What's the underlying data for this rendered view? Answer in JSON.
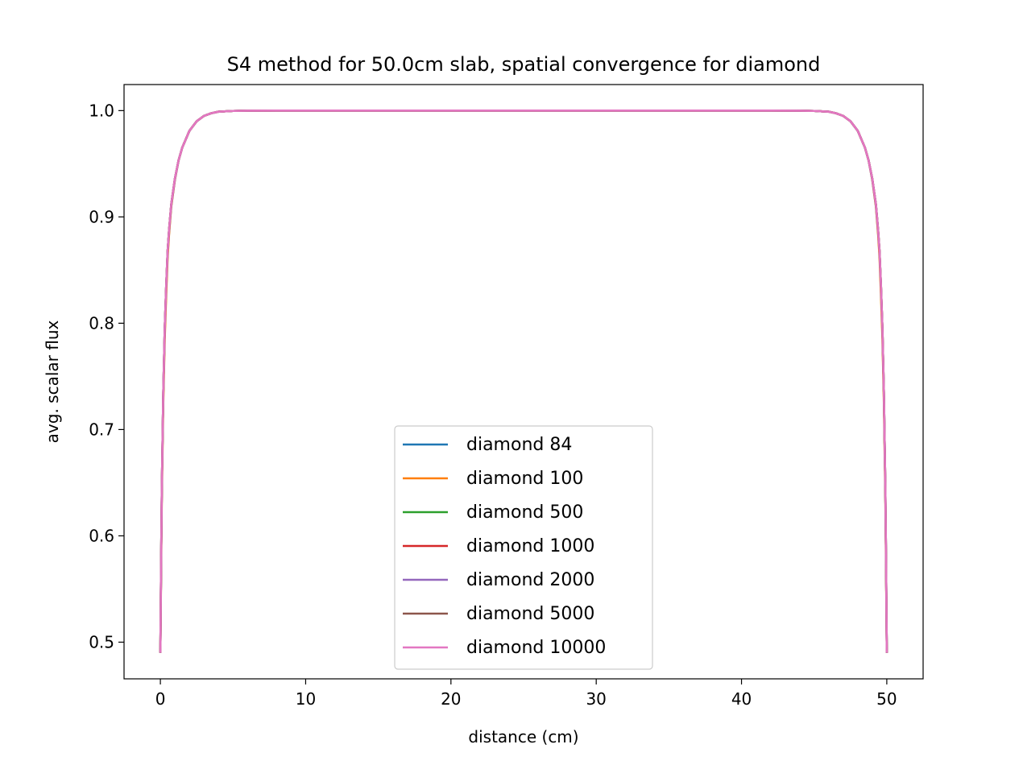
{
  "chart_data": {
    "type": "line",
    "title": "S4 method for 50.0cm slab, spatial convergence for diamond",
    "xlabel": "distance (cm)",
    "ylabel": "avg. scalar flux",
    "xlim": [
      -2.5,
      52.5
    ],
    "ylim": [
      0.4655,
      1.0245
    ],
    "xticks": [
      0,
      10,
      20,
      30,
      40,
      50
    ],
    "xtick_labels": [
      "0",
      "10",
      "20",
      "30",
      "40",
      "50"
    ],
    "yticks": [
      0.5,
      0.6,
      0.7,
      0.8,
      0.9,
      1.0
    ],
    "ytick_labels": [
      "0.5",
      "0.6",
      "0.7",
      "0.8",
      "0.9",
      "1.0"
    ],
    "grid": false,
    "legend_position": "bottom-center",
    "x": [
      0.0,
      0.05,
      0.1,
      0.2,
      0.3,
      0.4,
      0.5,
      0.6,
      0.75,
      1.0,
      1.25,
      1.5,
      2.0,
      2.5,
      3.0,
      3.5,
      4.0,
      5.0,
      6.0,
      8.0,
      10.0,
      20.0,
      30.0,
      40.0,
      42.0,
      44.0,
      45.0,
      46.0,
      46.5,
      47.0,
      47.5,
      48.0,
      48.5,
      48.75,
      49.0,
      49.25,
      49.4,
      49.5,
      49.6,
      49.7,
      49.8,
      49.9,
      49.95,
      50.0
    ],
    "series": [
      {
        "name": "diamond 84",
        "color": "#1f77b4",
        "y": [
          0.49,
          0.57,
          0.64,
          0.73,
          0.79,
          0.83,
          0.865,
          0.885,
          0.91,
          0.935,
          0.953,
          0.965,
          0.981,
          0.99,
          0.995,
          0.9975,
          0.999,
          0.9997,
          0.9999,
          1.0,
          1.0,
          1.0,
          1.0,
          1.0,
          1.0,
          0.9999,
          0.9997,
          0.999,
          0.9975,
          0.995,
          0.99,
          0.981,
          0.965,
          0.953,
          0.935,
          0.91,
          0.885,
          0.865,
          0.83,
          0.79,
          0.73,
          0.64,
          0.57,
          0.49
        ]
      },
      {
        "name": "diamond 100",
        "color": "#ff7f0e",
        "y": [
          0.49,
          0.565,
          0.635,
          0.725,
          0.785,
          0.826,
          0.862,
          0.884,
          0.91,
          0.935,
          0.953,
          0.965,
          0.981,
          0.99,
          0.995,
          0.9975,
          0.999,
          0.9997,
          0.9999,
          1.0,
          1.0,
          1.0,
          1.0,
          1.0,
          1.0,
          0.9999,
          0.9997,
          0.999,
          0.9975,
          0.995,
          0.99,
          0.981,
          0.965,
          0.953,
          0.935,
          0.91,
          0.884,
          0.862,
          0.826,
          0.785,
          0.725,
          0.635,
          0.565,
          0.49
        ]
      },
      {
        "name": "diamond 500",
        "color": "#2ca02c",
        "y": [
          0.49,
          0.575,
          0.645,
          0.735,
          0.795,
          0.835,
          0.868,
          0.888,
          0.912,
          0.936,
          0.953,
          0.965,
          0.981,
          0.99,
          0.995,
          0.9975,
          0.999,
          0.9997,
          0.9999,
          1.0,
          1.0,
          1.0,
          1.0,
          1.0,
          1.0,
          0.9999,
          0.9997,
          0.999,
          0.9975,
          0.995,
          0.99,
          0.981,
          0.965,
          0.953,
          0.936,
          0.912,
          0.888,
          0.868,
          0.835,
          0.795,
          0.735,
          0.645,
          0.575,
          0.49
        ]
      },
      {
        "name": "diamond 1000",
        "color": "#d62728",
        "y": [
          0.49,
          0.575,
          0.645,
          0.735,
          0.795,
          0.835,
          0.868,
          0.888,
          0.912,
          0.936,
          0.953,
          0.965,
          0.981,
          0.99,
          0.995,
          0.9975,
          0.999,
          0.9997,
          0.9999,
          1.0,
          1.0,
          1.0,
          1.0,
          1.0,
          1.0,
          0.9999,
          0.9997,
          0.999,
          0.9975,
          0.995,
          0.99,
          0.981,
          0.965,
          0.953,
          0.936,
          0.912,
          0.888,
          0.868,
          0.835,
          0.795,
          0.735,
          0.645,
          0.575,
          0.49
        ]
      },
      {
        "name": "diamond 2000",
        "color": "#9467bd",
        "y": [
          0.49,
          0.575,
          0.645,
          0.735,
          0.795,
          0.835,
          0.868,
          0.888,
          0.912,
          0.936,
          0.953,
          0.965,
          0.981,
          0.99,
          0.995,
          0.9975,
          0.999,
          0.9997,
          0.9999,
          1.0,
          1.0,
          1.0,
          1.0,
          1.0,
          1.0,
          0.9999,
          0.9997,
          0.999,
          0.9975,
          0.995,
          0.99,
          0.981,
          0.965,
          0.953,
          0.936,
          0.912,
          0.888,
          0.868,
          0.835,
          0.795,
          0.735,
          0.645,
          0.575,
          0.49
        ]
      },
      {
        "name": "diamond 5000",
        "color": "#8c564b",
        "y": [
          0.49,
          0.575,
          0.645,
          0.735,
          0.795,
          0.835,
          0.868,
          0.888,
          0.912,
          0.936,
          0.953,
          0.965,
          0.981,
          0.99,
          0.995,
          0.9975,
          0.999,
          0.9997,
          0.9999,
          1.0,
          1.0,
          1.0,
          1.0,
          1.0,
          1.0,
          0.9999,
          0.9997,
          0.999,
          0.9975,
          0.995,
          0.99,
          0.981,
          0.965,
          0.953,
          0.936,
          0.912,
          0.888,
          0.868,
          0.835,
          0.795,
          0.735,
          0.645,
          0.575,
          0.49
        ]
      },
      {
        "name": "diamond 10000",
        "color": "#e377c2",
        "y": [
          0.49,
          0.575,
          0.645,
          0.735,
          0.795,
          0.835,
          0.868,
          0.888,
          0.912,
          0.936,
          0.953,
          0.965,
          0.981,
          0.99,
          0.995,
          0.9975,
          0.999,
          0.9997,
          0.9999,
          1.0,
          1.0,
          1.0,
          1.0,
          1.0,
          1.0,
          0.9999,
          0.9997,
          0.999,
          0.9975,
          0.995,
          0.99,
          0.981,
          0.965,
          0.953,
          0.936,
          0.912,
          0.888,
          0.868,
          0.835,
          0.795,
          0.735,
          0.645,
          0.575,
          0.49
        ]
      }
    ]
  }
}
